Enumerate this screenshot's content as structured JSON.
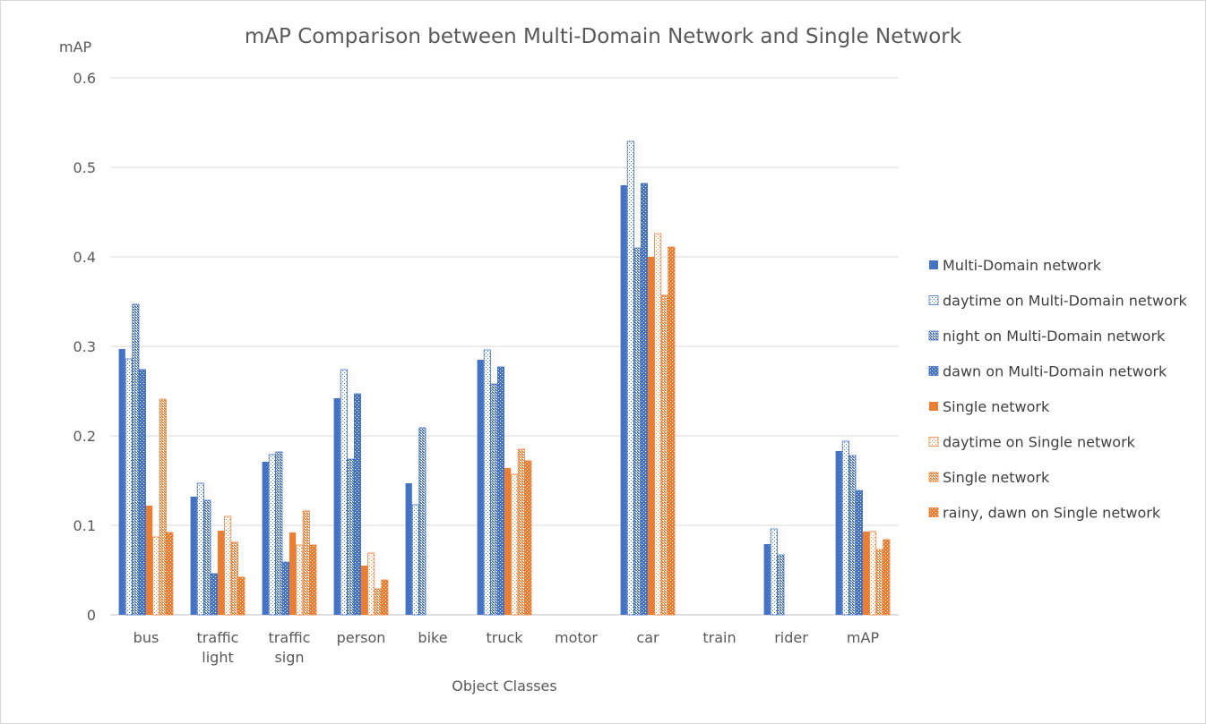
{
  "chart_data": {
    "type": "bar",
    "title": "mAP Comparison between Multi-Domain Network and Single Network",
    "xlabel": "Object Classes",
    "ylabel": "mAP",
    "ylim": [
      0,
      0.6
    ],
    "yticks": [
      "0",
      "0.1",
      "0.2",
      "0.3",
      "0.4",
      "0.5",
      "0.6"
    ],
    "grid": true,
    "legend_position": "right",
    "categories": [
      [
        "bus"
      ],
      [
        "traffic",
        "light"
      ],
      [
        "traffic",
        "sign"
      ],
      [
        "person"
      ],
      [
        "bike"
      ],
      [
        "truck"
      ],
      [
        "motor"
      ],
      [
        "car"
      ],
      [
        "train"
      ],
      [
        "rider"
      ],
      [
        "mAP"
      ]
    ],
    "series": [
      {
        "name": "Multi-Domain network",
        "color": "#4472c4",
        "pattern": "solid",
        "values": [
          0.297,
          0.132,
          0.171,
          0.242,
          0.147,
          0.285,
          null,
          0.48,
          null,
          0.079,
          0.183
        ]
      },
      {
        "name": "daytime on Multi-Domain network",
        "color": "#4472c4",
        "pattern": "light-dots",
        "values": [
          0.286,
          0.147,
          0.179,
          0.274,
          0.123,
          0.296,
          null,
          0.529,
          null,
          0.096,
          0.194
        ]
      },
      {
        "name": "night on Multi-Domain network",
        "color": "#4472c4",
        "pattern": "dense-dots",
        "values": [
          0.347,
          0.128,
          0.182,
          0.174,
          0.209,
          0.258,
          null,
          0.41,
          null,
          0.067,
          0.178
        ]
      },
      {
        "name": "dawn on Multi-Domain network",
        "color": "#4472c4",
        "pattern": "checker",
        "values": [
          0.274,
          0.046,
          0.059,
          0.247,
          null,
          0.277,
          null,
          0.482,
          null,
          null,
          0.139
        ]
      },
      {
        "name": "Single network",
        "color": "#ed7d31",
        "pattern": "solid",
        "values": [
          0.122,
          0.094,
          0.092,
          0.055,
          null,
          0.164,
          null,
          0.4,
          null,
          null,
          0.093
        ]
      },
      {
        "name": "daytime on Single network",
        "color": "#ed7d31",
        "pattern": "light-dots",
        "values": [
          0.087,
          0.11,
          0.078,
          0.069,
          null,
          0.157,
          null,
          0.426,
          null,
          null,
          0.093
        ]
      },
      {
        "name": "Single network",
        "color": "#ed7d31",
        "pattern": "dense-dots",
        "values": [
          0.241,
          0.081,
          0.116,
          0.029,
          null,
          0.185,
          null,
          0.357,
          null,
          null,
          0.073
        ]
      },
      {
        "name": "rainy, dawn on Single network",
        "color": "#ed7d31",
        "pattern": "checker",
        "values": [
          0.092,
          0.042,
          0.078,
          0.039,
          null,
          0.172,
          null,
          0.411,
          null,
          null,
          0.084
        ]
      }
    ]
  }
}
